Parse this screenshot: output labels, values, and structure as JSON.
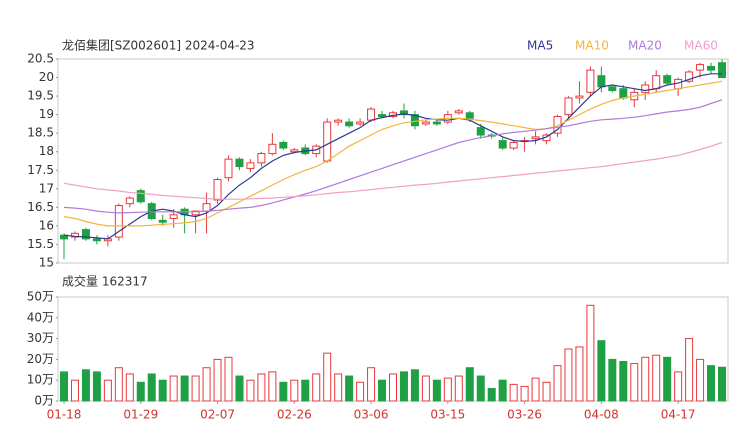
{
  "chart_data": [
    {
      "type": "candlestick",
      "title": "龙佰集团[SZ002601] 2024-04-23",
      "open": [
        15.75,
        15.7,
        15.9,
        15.65,
        15.6,
        15.7,
        16.6,
        16.95,
        16.6,
        16.15,
        16.2,
        16.45,
        16.3,
        16.4,
        16.7,
        17.3,
        17.8,
        17.55,
        17.7,
        17.95,
        18.25,
        18.0,
        18.1,
        17.95,
        17.75,
        18.8,
        18.8,
        18.75,
        18.85,
        19.0,
        18.95,
        19.1,
        19.0,
        18.75,
        18.8,
        18.8,
        19.05,
        19.05,
        18.65,
        18.45,
        18.3,
        18.1,
        18.3,
        18.35,
        18.3,
        18.5,
        19.0,
        19.45,
        19.6,
        20.05,
        19.75,
        19.7,
        19.4,
        19.6,
        19.7,
        20.05,
        19.7,
        19.9,
        20.2,
        20.3,
        20.4
      ],
      "high": [
        15.8,
        15.85,
        15.95,
        15.75,
        15.75,
        16.6,
        16.8,
        17.0,
        16.65,
        16.3,
        16.45,
        16.5,
        16.4,
        16.9,
        17.3,
        17.9,
        17.85,
        17.8,
        18.0,
        18.5,
        18.3,
        18.1,
        18.2,
        18.2,
        18.9,
        18.9,
        18.9,
        18.9,
        19.2,
        19.1,
        19.1,
        19.3,
        19.1,
        18.85,
        18.9,
        19.1,
        19.15,
        19.1,
        18.75,
        18.5,
        18.4,
        18.3,
        18.4,
        18.55,
        18.5,
        19.0,
        19.5,
        19.9,
        20.3,
        20.3,
        19.8,
        19.8,
        19.7,
        19.9,
        20.2,
        20.1,
        20.0,
        20.2,
        20.4,
        20.4,
        20.5
      ],
      "low": [
        15.1,
        15.6,
        15.6,
        15.5,
        15.45,
        15.6,
        16.5,
        16.6,
        16.15,
        16.0,
        15.95,
        15.8,
        15.8,
        15.8,
        16.6,
        17.2,
        17.5,
        17.45,
        17.6,
        17.9,
        18.05,
        17.95,
        17.9,
        17.85,
        17.7,
        18.7,
        18.65,
        18.7,
        18.8,
        18.9,
        18.9,
        18.9,
        18.6,
        18.7,
        18.7,
        18.75,
        19.0,
        18.8,
        18.35,
        18.35,
        18.05,
        18.05,
        18.0,
        18.2,
        18.2,
        18.4,
        18.9,
        19.3,
        19.5,
        19.6,
        19.6,
        19.4,
        19.2,
        19.4,
        19.6,
        19.8,
        19.5,
        19.85,
        20.0,
        20.1,
        20.0
      ],
      "close": [
        15.65,
        15.8,
        15.65,
        15.6,
        15.65,
        16.55,
        16.75,
        16.65,
        16.2,
        16.1,
        16.3,
        16.3,
        16.4,
        16.6,
        17.25,
        17.8,
        17.6,
        17.7,
        17.95,
        18.2,
        18.1,
        18.05,
        17.95,
        18.15,
        18.8,
        18.85,
        18.7,
        18.8,
        19.15,
        18.95,
        19.05,
        19.0,
        18.7,
        18.8,
        18.75,
        19.0,
        19.1,
        18.9,
        18.45,
        18.42,
        18.1,
        18.25,
        18.3,
        18.4,
        18.45,
        18.95,
        19.45,
        19.5,
        20.2,
        19.75,
        19.65,
        19.45,
        19.6,
        19.8,
        20.05,
        19.85,
        19.95,
        20.15,
        20.35,
        20.2,
        20.0
      ],
      "series": [
        {
          "name": "MA5",
          "color": "#2f3a8f",
          "values": [
            15.75,
            15.72,
            15.7,
            15.68,
            15.65,
            15.85,
            16.05,
            16.25,
            16.4,
            16.45,
            16.4,
            16.3,
            16.25,
            16.35,
            16.55,
            16.85,
            17.1,
            17.3,
            17.55,
            17.75,
            17.9,
            17.98,
            18.02,
            18.05,
            18.2,
            18.35,
            18.5,
            18.65,
            18.85,
            18.92,
            18.98,
            19.02,
            18.98,
            18.9,
            18.86,
            18.85,
            18.9,
            18.85,
            18.7,
            18.55,
            18.4,
            18.3,
            18.28,
            18.3,
            18.4,
            18.6,
            18.9,
            19.2,
            19.5,
            19.75,
            19.8,
            19.75,
            19.7,
            19.65,
            19.7,
            19.8,
            19.85,
            19.95,
            20.05,
            20.1,
            20.1
          ]
        },
        {
          "name": "MA10",
          "color": "#f2b640",
          "values": [
            16.25,
            16.2,
            16.12,
            16.05,
            16.0,
            16.0,
            16.0,
            16.0,
            16.02,
            16.04,
            16.06,
            16.08,
            16.12,
            16.2,
            16.35,
            16.5,
            16.65,
            16.8,
            16.95,
            17.1,
            17.25,
            17.38,
            17.5,
            17.6,
            17.75,
            17.95,
            18.15,
            18.3,
            18.45,
            18.6,
            18.7,
            18.78,
            18.82,
            18.86,
            18.88,
            18.9,
            18.9,
            18.88,
            18.84,
            18.8,
            18.75,
            18.7,
            18.65,
            18.6,
            18.62,
            18.7,
            18.85,
            19.0,
            19.15,
            19.28,
            19.38,
            19.45,
            19.5,
            19.55,
            19.6,
            19.65,
            19.7,
            19.75,
            19.8,
            19.85,
            19.9
          ]
        },
        {
          "name": "MA20",
          "color": "#b27ad8",
          "values": [
            16.5,
            16.48,
            16.45,
            16.4,
            16.37,
            16.35,
            16.36,
            16.37,
            16.38,
            16.38,
            16.38,
            16.38,
            16.38,
            16.4,
            16.42,
            16.45,
            16.48,
            16.5,
            16.55,
            16.62,
            16.7,
            16.78,
            16.86,
            16.95,
            17.05,
            17.15,
            17.25,
            17.35,
            17.45,
            17.55,
            17.65,
            17.75,
            17.85,
            17.95,
            18.05,
            18.15,
            18.25,
            18.32,
            18.38,
            18.43,
            18.48,
            18.52,
            18.55,
            18.58,
            18.62,
            18.66,
            18.7,
            18.76,
            18.82,
            18.86,
            18.88,
            18.9,
            18.93,
            18.97,
            19.02,
            19.07,
            19.1,
            19.14,
            19.2,
            19.3,
            19.4
          ]
        },
        {
          "name": "MA60",
          "color": "#f0a0c8",
          "values": [
            17.15,
            17.1,
            17.05,
            17.0,
            16.97,
            16.94,
            16.9,
            16.88,
            16.85,
            16.82,
            16.8,
            16.78,
            16.76,
            16.74,
            16.72,
            16.72,
            16.72,
            16.73,
            16.74,
            16.75,
            16.77,
            16.79,
            16.81,
            16.84,
            16.87,
            16.9,
            16.92,
            16.95,
            16.98,
            17.01,
            17.04,
            17.07,
            17.1,
            17.12,
            17.15,
            17.18,
            17.21,
            17.24,
            17.27,
            17.3,
            17.33,
            17.36,
            17.39,
            17.42,
            17.45,
            17.48,
            17.51,
            17.54,
            17.57,
            17.6,
            17.64,
            17.68,
            17.72,
            17.76,
            17.8,
            17.85,
            17.9,
            17.98,
            18.06,
            18.15,
            18.25
          ]
        }
      ],
      "up_color": "#e8383d",
      "down_color": "#1fa045",
      "ylim": [
        15,
        20.5
      ],
      "yticks": [
        15,
        15.5,
        16,
        16.5,
        17,
        17.5,
        18,
        18.5,
        19,
        19.5,
        20,
        20.5
      ]
    },
    {
      "type": "bar",
      "title": "成交量 162317",
      "categories": [
        "01-18",
        null,
        null,
        null,
        null,
        null,
        null,
        "01-29",
        null,
        null,
        null,
        null,
        null,
        null,
        "02-07",
        null,
        null,
        null,
        null,
        null,
        null,
        "02-26",
        null,
        null,
        null,
        null,
        null,
        null,
        "03-06",
        null,
        null,
        null,
        null,
        null,
        null,
        "03-15",
        null,
        null,
        null,
        null,
        null,
        null,
        "03-26",
        null,
        null,
        null,
        null,
        null,
        null,
        "04-08",
        null,
        null,
        null,
        null,
        null,
        null,
        "04-17",
        null,
        null,
        null,
        null
      ],
      "values": [
        14,
        10,
        15,
        14,
        10,
        16,
        13,
        9,
        13,
        10,
        12,
        12,
        12,
        16,
        20,
        21,
        12,
        10,
        13,
        14,
        9,
        10,
        10,
        13,
        23,
        13,
        12,
        9,
        16,
        10,
        13,
        14,
        15,
        12,
        10,
        11,
        12,
        16,
        12,
        6,
        10,
        8,
        7,
        11,
        9,
        17,
        25,
        26,
        46,
        29,
        20,
        19,
        18,
        21,
        22,
        21,
        14,
        30,
        20,
        17,
        16.23
      ],
      "ylim": [
        0,
        50
      ],
      "yticks": [
        {
          "value": 0,
          "label": "0万"
        },
        {
          "value": 10,
          "label": "10万"
        },
        {
          "value": 20,
          "label": "20万"
        },
        {
          "value": 30,
          "label": "30万"
        },
        {
          "value": 40,
          "label": "40万"
        },
        {
          "value": 50,
          "label": "50万"
        }
      ]
    }
  ]
}
